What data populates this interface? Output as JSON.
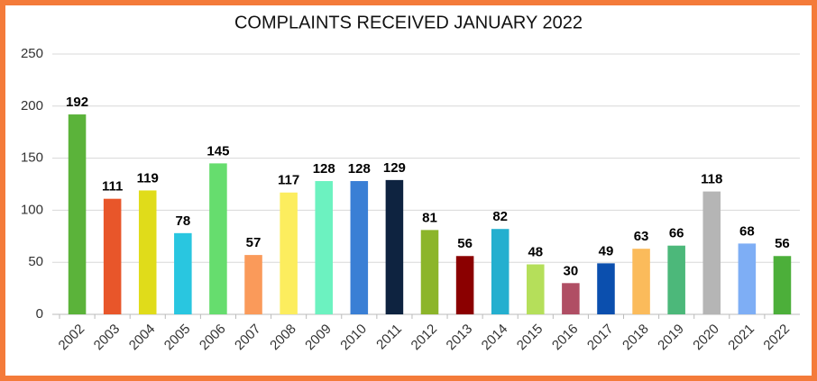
{
  "chart_data": {
    "type": "bar",
    "title": "COMPLAINTS RECEIVED JANUARY 2022",
    "categories": [
      "2002",
      "2003",
      "2004",
      "2005",
      "2006",
      "2007",
      "2008",
      "2009",
      "2010",
      "2011",
      "2012",
      "2013",
      "2014",
      "2015",
      "2016",
      "2017",
      "2018",
      "2019",
      "2020",
      "2021",
      "2022"
    ],
    "values": [
      192,
      111,
      119,
      78,
      145,
      57,
      117,
      128,
      128,
      129,
      81,
      56,
      82,
      48,
      30,
      49,
      63,
      66,
      118,
      68,
      56
    ],
    "colors": [
      "#5bb33a",
      "#e8562a",
      "#e0dc1a",
      "#29c6e0",
      "#66dd6e",
      "#fa9a5a",
      "#fced5e",
      "#6cf2c0",
      "#3a7fd5",
      "#0e2340",
      "#8cb52a",
      "#8b0000",
      "#24afcf",
      "#b5df5a",
      "#b04e64",
      "#0b4fae",
      "#fbbb5b",
      "#4cb87a",
      "#b5b5b5",
      "#7eaef5",
      "#4caf3a"
    ],
    "ylim": [
      0,
      250
    ],
    "yticks": [
      0,
      50,
      100,
      150,
      200,
      250
    ],
    "grid": true
  }
}
